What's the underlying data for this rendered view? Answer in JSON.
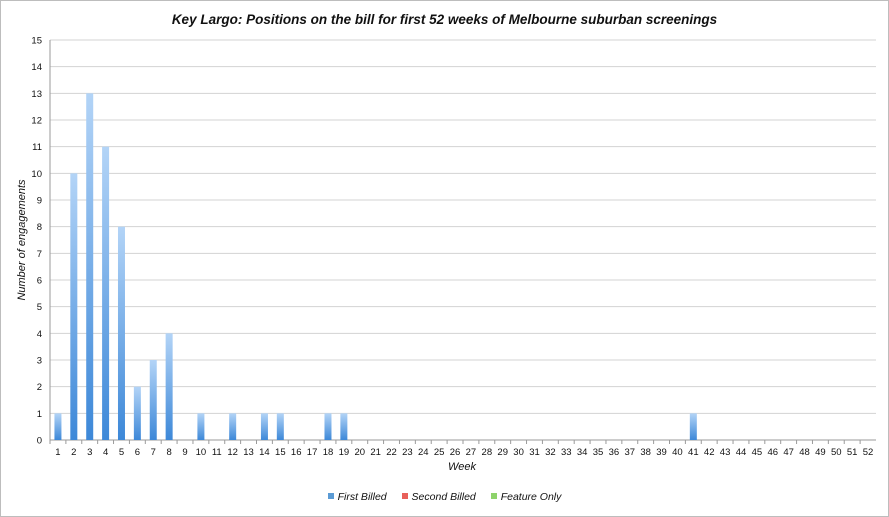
{
  "chart_data": {
    "type": "bar",
    "title": "Key Largo: Positions on the bill for first 52 weeks of Melbourne suburban screenings",
    "xlabel": "Week",
    "ylabel": "Number of engagements",
    "ylim": [
      0,
      15
    ],
    "y_ticks": [
      "0",
      "1",
      "2",
      "3",
      "4",
      "5",
      "6",
      "7",
      "8",
      "9",
      "10",
      "11",
      "12",
      "13",
      "14",
      "15"
    ],
    "categories": [
      "1",
      "2",
      "3",
      "4",
      "5",
      "6",
      "7",
      "8",
      "9",
      "10",
      "11",
      "12",
      "13",
      "14",
      "15",
      "16",
      "17",
      "18",
      "19",
      "20",
      "21",
      "22",
      "23",
      "24",
      "25",
      "26",
      "27",
      "28",
      "29",
      "30",
      "31",
      "32",
      "33",
      "34",
      "35",
      "36",
      "37",
      "38",
      "39",
      "40",
      "41",
      "42",
      "43",
      "44",
      "45",
      "46",
      "47",
      "48",
      "49",
      "50",
      "51",
      "52"
    ],
    "series": [
      {
        "name": "First Billed",
        "color": "#5b9bd5",
        "values": [
          1,
          10,
          13,
          11,
          8,
          2,
          3,
          4,
          0,
          1,
          0,
          1,
          0,
          1,
          1,
          0,
          0,
          1,
          1,
          0,
          0,
          0,
          0,
          0,
          0,
          0,
          0,
          0,
          0,
          0,
          0,
          0,
          0,
          0,
          0,
          0,
          0,
          0,
          0,
          0,
          1,
          0,
          0,
          0,
          0,
          0,
          0,
          0,
          0,
          0,
          0,
          0
        ]
      },
      {
        "name": "Second Billed",
        "color": "#e8605a",
        "values": [
          0,
          0,
          0,
          0,
          0,
          0,
          0,
          0,
          0,
          0,
          0,
          0,
          0,
          0,
          0,
          0,
          0,
          0,
          0,
          0,
          0,
          0,
          0,
          0,
          0,
          0,
          0,
          0,
          0,
          0,
          0,
          0,
          0,
          0,
          0,
          0,
          0,
          0,
          0,
          0,
          0,
          0,
          0,
          0,
          0,
          0,
          0,
          0,
          0,
          0,
          0,
          0
        ]
      },
      {
        "name": "Feature Only",
        "color": "#8ed36b",
        "values": [
          0,
          0,
          0,
          0,
          0,
          0,
          0,
          0,
          0,
          0,
          0,
          0,
          0,
          0,
          0,
          0,
          0,
          0,
          0,
          0,
          0,
          0,
          0,
          0,
          0,
          0,
          0,
          0,
          0,
          0,
          0,
          0,
          0,
          0,
          0,
          0,
          0,
          0,
          0,
          0,
          0,
          0,
          0,
          0,
          0,
          0,
          0,
          0,
          0,
          0,
          0,
          0
        ]
      }
    ],
    "grid": true,
    "legend_position": "bottom"
  }
}
